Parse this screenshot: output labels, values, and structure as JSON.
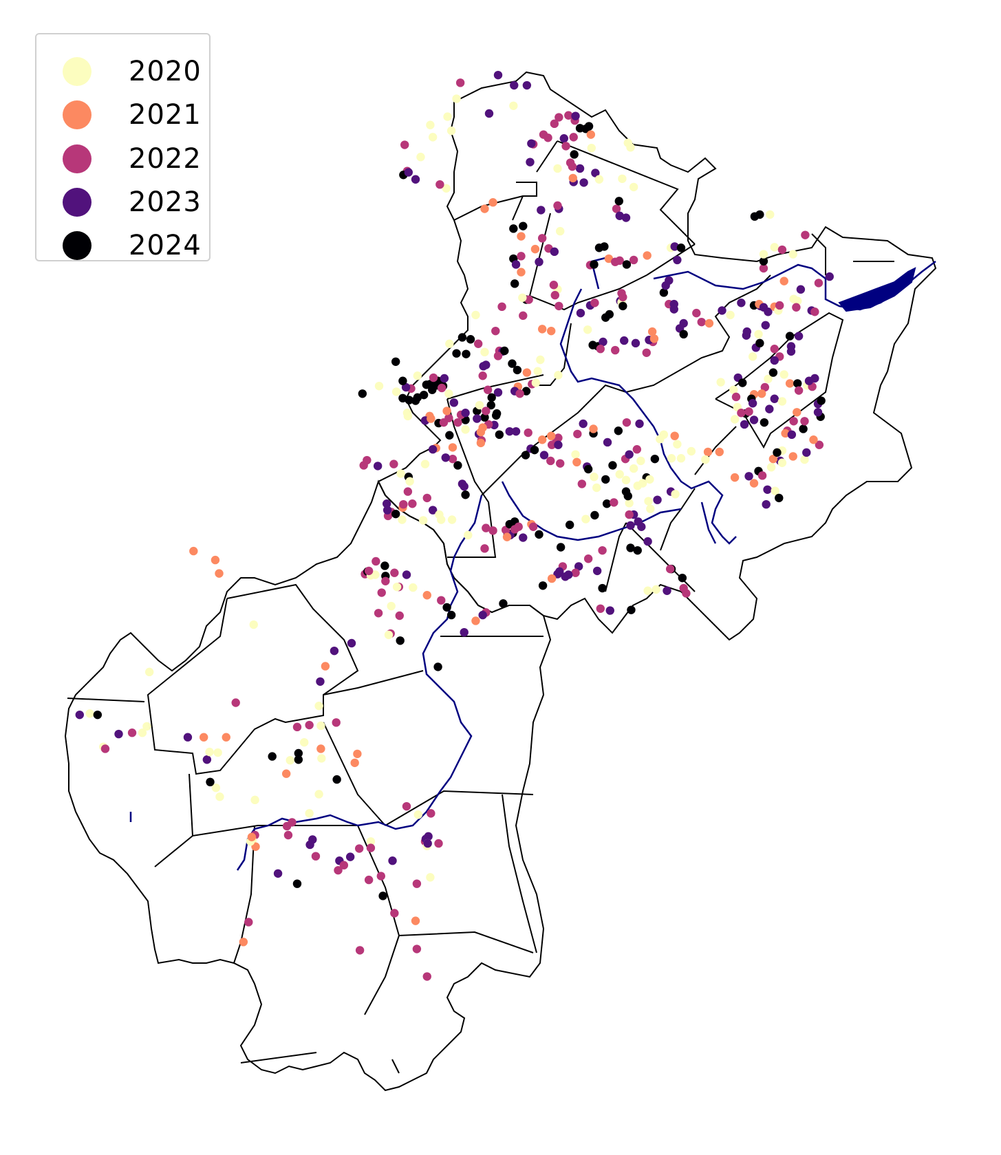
{
  "legend": {
    "items": [
      {
        "label": "2020",
        "color": "#fcfdbf"
      },
      {
        "label": "2021",
        "color": "#fc8961"
      },
      {
        "label": "2022",
        "color": "#b73779"
      },
      {
        "label": "2023",
        "color": "#51127c"
      },
      {
        "label": "2024",
        "color": "#000004"
      }
    ]
  },
  "map": {
    "boundary_color": "#000000",
    "river_color": "#000080",
    "background": "#ffffff"
  }
}
